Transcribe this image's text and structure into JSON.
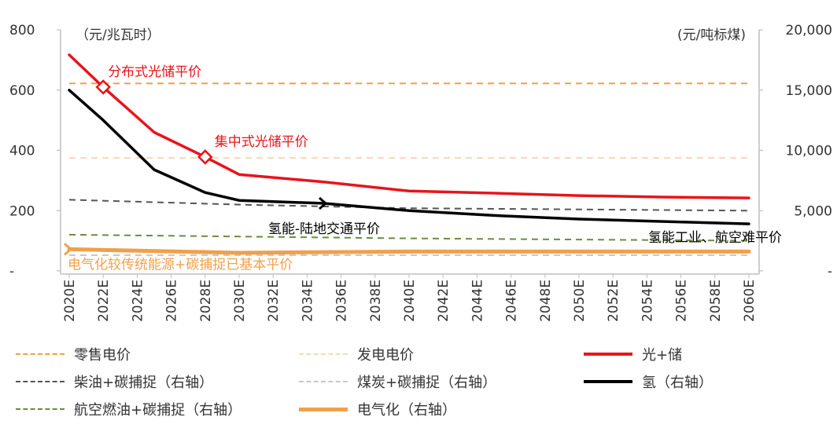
{
  "chart_data": {
    "type": "line",
    "left_axis": {
      "unit_label": "（元/兆瓦时）",
      "range": [
        0,
        800
      ],
      "ticks": [
        "800",
        "600",
        "400",
        "200",
        "-"
      ],
      "tick_values": [
        800,
        600,
        400,
        200,
        0
      ]
    },
    "right_axis": {
      "unit_label": "(元/吨标煤)",
      "range": [
        0,
        20000
      ],
      "ticks": [
        "20,000",
        "15,000",
        "10,000",
        "5,000",
        "-"
      ],
      "tick_values": [
        20000,
        15000,
        10000,
        5000,
        0
      ]
    },
    "x_labels": [
      "2020E",
      "2022E",
      "2024E",
      "2026E",
      "2028E",
      "2030E",
      "2032E",
      "2034E",
      "2036E",
      "2038E",
      "2040E",
      "2042E",
      "2044E",
      "2046E",
      "2048E",
      "2050E",
      "2052E",
      "2054E",
      "2056E",
      "2058E",
      "2060E"
    ],
    "series": [
      {
        "key": "retail",
        "name": "零售电价",
        "axis": "left",
        "color": "#F0A04B",
        "style": "dashed",
        "width": 2,
        "points": [
          [
            2020,
            622
          ],
          [
            2060,
            622
          ]
        ]
      },
      {
        "key": "gen",
        "name": "发电电价",
        "axis": "left",
        "color": "#F8D9B4",
        "style": "dashed",
        "width": 2,
        "points": [
          [
            2020,
            375
          ],
          [
            2060,
            375
          ]
        ]
      },
      {
        "key": "pv",
        "name": "光+储",
        "axis": "left",
        "color": "#E8141B",
        "style": "solid",
        "width": 3.5,
        "points": [
          [
            2020,
            717
          ],
          [
            2022,
            610
          ],
          [
            2025,
            460
          ],
          [
            2028,
            378
          ],
          [
            2030,
            320
          ],
          [
            2035,
            295
          ],
          [
            2040,
            265
          ],
          [
            2045,
            258
          ],
          [
            2050,
            250
          ],
          [
            2055,
            245
          ],
          [
            2060,
            242
          ]
        ]
      },
      {
        "key": "diesel",
        "name": "柴油+碳捕捉（右轴）",
        "axis": "right",
        "color": "#555555",
        "style": "dashed",
        "width": 2,
        "points": [
          [
            2020,
            5900
          ],
          [
            2030,
            5500
          ],
          [
            2040,
            5200
          ],
          [
            2050,
            5100
          ],
          [
            2060,
            5000
          ]
        ]
      },
      {
        "key": "coal",
        "name": "煤炭+碳捕捉（右轴）",
        "axis": "right",
        "color": "#C8C8C8",
        "style": "dashed",
        "width": 2,
        "points": [
          [
            2020,
            1300
          ],
          [
            2060,
            1300
          ]
        ]
      },
      {
        "key": "h2",
        "name": "氢（右轴）",
        "axis": "right",
        "color": "#000000",
        "style": "solid",
        "width": 3.5,
        "points": [
          [
            2020,
            15000
          ],
          [
            2022,
            12500
          ],
          [
            2025,
            8400
          ],
          [
            2028,
            6500
          ],
          [
            2030,
            5850
          ],
          [
            2035,
            5600
          ],
          [
            2040,
            5000
          ],
          [
            2045,
            4600
          ],
          [
            2050,
            4300
          ],
          [
            2055,
            4100
          ],
          [
            2060,
            3900
          ]
        ]
      },
      {
        "key": "jet",
        "name": "航空燃油+碳捕捉（右轴）",
        "axis": "right",
        "color": "#6E8B3D",
        "style": "dashed",
        "width": 2,
        "points": [
          [
            2020,
            3000
          ],
          [
            2040,
            2700
          ],
          [
            2060,
            2500
          ]
        ]
      },
      {
        "key": "elec",
        "name": "电气化（右轴）",
        "axis": "right",
        "color": "#F0A04B",
        "style": "solid",
        "width": 5,
        "points": [
          [
            2020,
            1800
          ],
          [
            2030,
            1500
          ],
          [
            2040,
            1600
          ],
          [
            2050,
            1600
          ],
          [
            2060,
            1600
          ]
        ]
      }
    ],
    "annotations": [
      {
        "text": "分布式光储平价",
        "color": "#E8141B",
        "year": 2022,
        "axis": "left",
        "value": 610
      },
      {
        "text": "集中式光储平价",
        "color": "#E8141B",
        "year": 2028,
        "axis": "left",
        "value": 378
      },
      {
        "text": "氢能-陆地交通平价",
        "color": "#000000",
        "year": 2035,
        "axis": "right",
        "value": 5600
      },
      {
        "text": "氢能工业、航空难平价",
        "color": "#000000",
        "year": 2060,
        "axis": "right",
        "value": 3900
      },
      {
        "text": "电气化较传统能源+碳捕捉已基本平价",
        "color": "#F0A04B",
        "year": 2020,
        "axis": "right",
        "value": 1800
      }
    ]
  }
}
